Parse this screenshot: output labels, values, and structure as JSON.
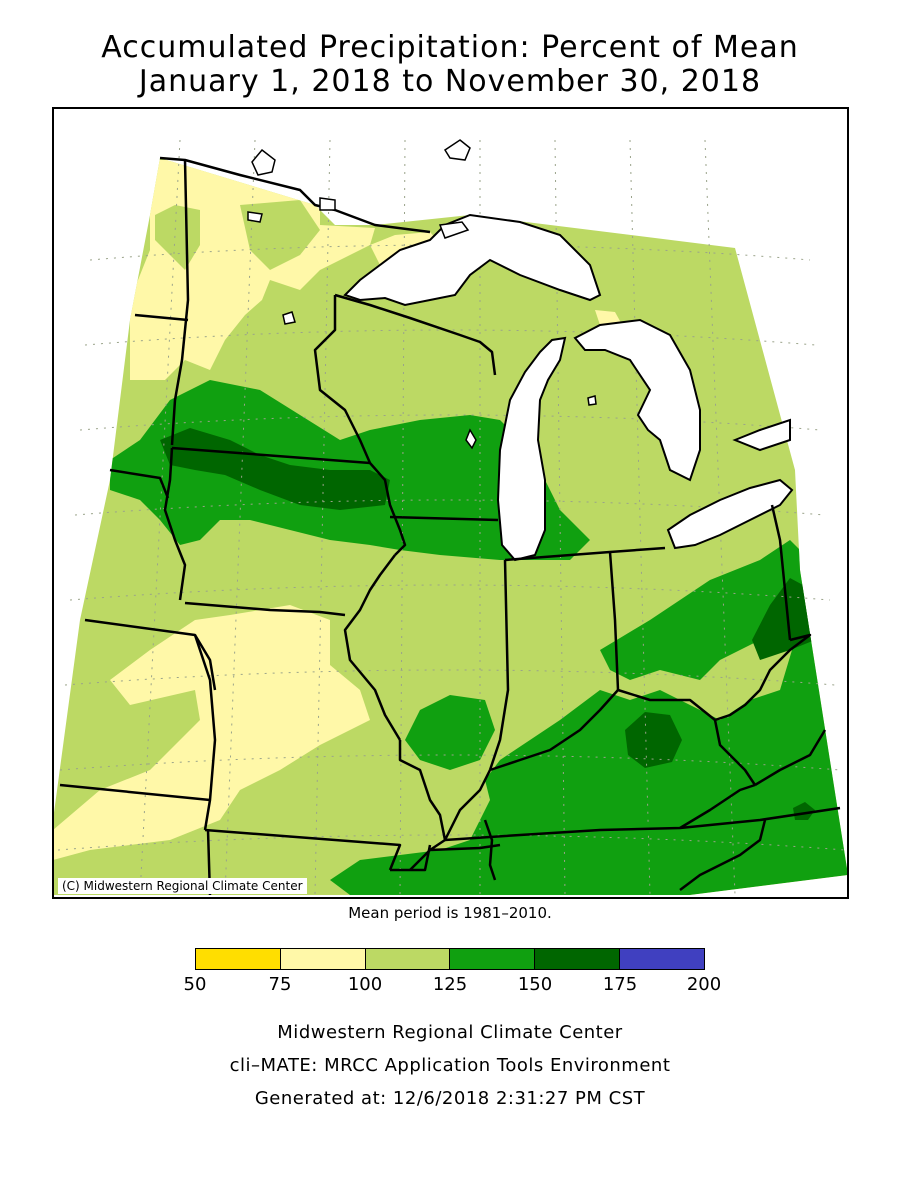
{
  "title_line1": "Accumulated Precipitation: Percent of Mean",
  "title_line2": "January 1, 2018 to November 30, 2018",
  "copyright": "(C) Midwestern Regional Climate Center",
  "mean_period": "Mean period is 1981–2010.",
  "legend": {
    "ticks": [
      "50",
      "75",
      "100",
      "125",
      "150",
      "175",
      "200"
    ],
    "colors": [
      "#ffde00",
      "#fff8a8",
      "#bcd964",
      "#10a010",
      "#006600",
      "#4040c0"
    ]
  },
  "credits": {
    "line1": "Midwestern Regional Climate Center",
    "line2": "cli–MATE: MRCC Application Tools Environment",
    "line3": "Generated at: 12/6/2018 2:31:27 PM CST"
  },
  "colors": {
    "class_75_100": "#fff8a8",
    "class_100_125": "#bcd964",
    "class_125_150": "#10a010",
    "class_150_175": "#006600",
    "water": "#ffffff"
  }
}
